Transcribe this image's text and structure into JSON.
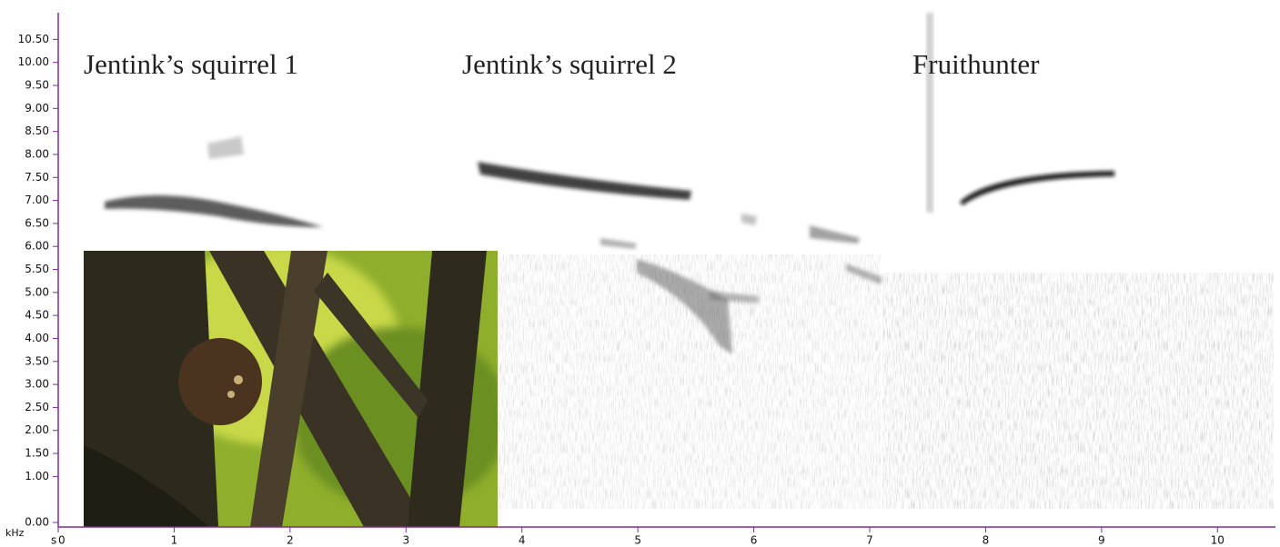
{
  "chart_data": {
    "type": "spectrogram",
    "x_label": "s",
    "y_label": "kHz",
    "xlim": [
      0,
      10.5
    ],
    "ylim": [
      0,
      11.1
    ],
    "xticks": [
      0,
      1,
      2,
      3,
      4,
      5,
      6,
      7,
      8,
      9,
      10
    ],
    "yticks": [
      {
        "value": 0,
        "label": "0.00"
      },
      {
        "value": 1,
        "label": "1.00"
      },
      {
        "value": 1.5,
        "label": "1.50"
      },
      {
        "value": 2,
        "label": "2.00"
      },
      {
        "value": 2.5,
        "label": "2.50"
      },
      {
        "value": 3,
        "label": "3.00"
      },
      {
        "value": 3.5,
        "label": "3.50"
      },
      {
        "value": 4,
        "label": "4.00"
      },
      {
        "value": 4.5,
        "label": "4.50"
      },
      {
        "value": 5,
        "label": "5.00"
      },
      {
        "value": 5.5,
        "label": "5.50"
      },
      {
        "value": 6,
        "label": "6.00"
      },
      {
        "value": 6.5,
        "label": "6.50"
      },
      {
        "value": 7,
        "label": "7.00"
      },
      {
        "value": 7.5,
        "label": "7.50"
      },
      {
        "value": 8,
        "label": "8.00"
      },
      {
        "value": 8.5,
        "label": "8.50"
      },
      {
        "value": 9,
        "label": "9.00"
      },
      {
        "value": 9.5,
        "label": "9.50"
      },
      {
        "value": 10,
        "label": "10.00"
      },
      {
        "value": 10.5,
        "label": "10.50"
      }
    ],
    "annotations": [
      "Jentink’s squirrel 1",
      "Jentink’s squirrel 2",
      "Fruithunter"
    ]
  }
}
